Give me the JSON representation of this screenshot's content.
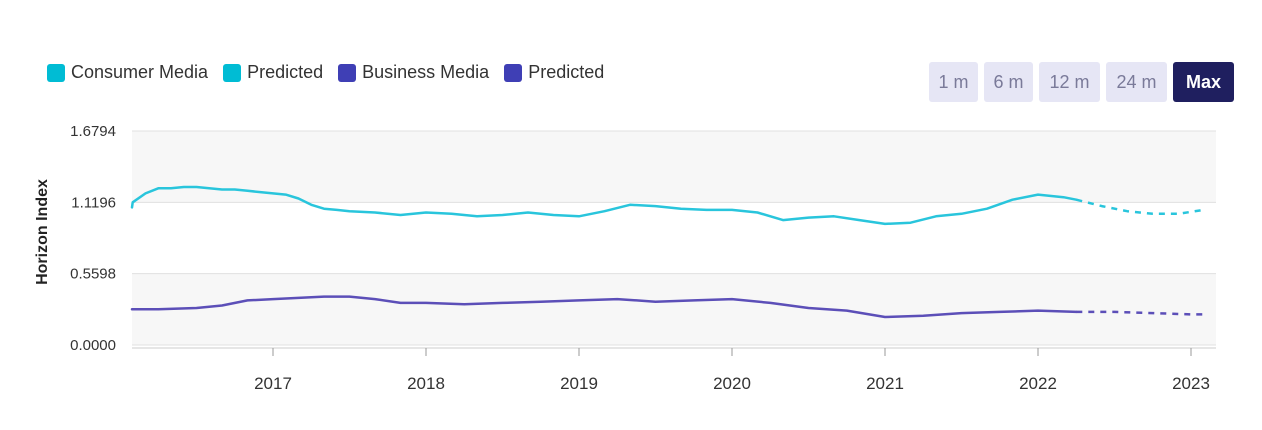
{
  "legend": [
    {
      "label": "Consumer Media",
      "color": "#00bcd4"
    },
    {
      "label": "Predicted",
      "color": "#00bcd4"
    },
    {
      "label": "Business Media",
      "color": "#3f3fb5"
    },
    {
      "label": "Predicted",
      "color": "#3f3fb5"
    }
  ],
  "range_buttons": [
    {
      "label": "1 m",
      "active": false
    },
    {
      "label": "6 m",
      "active": false
    },
    {
      "label": "12 m",
      "active": false
    },
    {
      "label": "24 m",
      "active": false
    },
    {
      "label": "Max",
      "active": true
    }
  ],
  "chart_data": {
    "type": "line",
    "title": "",
    "xlabel": "",
    "ylabel": "Horizon Index",
    "y_ticks": [
      "1.6794",
      "1.1196",
      "0.5598",
      "0.0000"
    ],
    "x_ticks": [
      "2017",
      "2018",
      "2019",
      "2020",
      "2021",
      "2022",
      "2023"
    ],
    "ylim": [
      0,
      1.6794
    ],
    "xlim": [
      "2016-01",
      "2023-02"
    ],
    "grid": "horizontal",
    "legend_position": "top-left",
    "series": [
      {
        "name": "Consumer Media",
        "color": "#29c5dc",
        "style": "solid",
        "points": [
          [
            "2016-01",
            1.08
          ],
          [
            "2016-02",
            1.12
          ],
          [
            "2016-03",
            1.19
          ],
          [
            "2016-04",
            1.23
          ],
          [
            "2016-05",
            1.23
          ],
          [
            "2016-06",
            1.24
          ],
          [
            "2016-07",
            1.24
          ],
          [
            "2016-08",
            1.23
          ],
          [
            "2016-09",
            1.22
          ],
          [
            "2016-10",
            1.22
          ],
          [
            "2016-11",
            1.21
          ],
          [
            "2016-12",
            1.2
          ],
          [
            "2017-01",
            1.19
          ],
          [
            "2017-02",
            1.18
          ],
          [
            "2017-03",
            1.15
          ],
          [
            "2017-04",
            1.1
          ],
          [
            "2017-05",
            1.07
          ],
          [
            "2017-06",
            1.06
          ],
          [
            "2017-07",
            1.05
          ],
          [
            "2017-09",
            1.04
          ],
          [
            "2017-11",
            1.02
          ],
          [
            "2018-01",
            1.04
          ],
          [
            "2018-03",
            1.03
          ],
          [
            "2018-05",
            1.01
          ],
          [
            "2018-07",
            1.02
          ],
          [
            "2018-09",
            1.04
          ],
          [
            "2018-11",
            1.02
          ],
          [
            "2019-01",
            1.01
          ],
          [
            "2019-03",
            1.05
          ],
          [
            "2019-05",
            1.1
          ],
          [
            "2019-07",
            1.09
          ],
          [
            "2019-09",
            1.07
          ],
          [
            "2019-11",
            1.06
          ],
          [
            "2020-01",
            1.06
          ],
          [
            "2020-03",
            1.04
          ],
          [
            "2020-05",
            0.98
          ],
          [
            "2020-07",
            1.0
          ],
          [
            "2020-09",
            1.01
          ],
          [
            "2020-11",
            0.98
          ],
          [
            "2021-01",
            0.95
          ],
          [
            "2021-03",
            0.96
          ],
          [
            "2021-05",
            1.01
          ],
          [
            "2021-07",
            1.03
          ],
          [
            "2021-09",
            1.07
          ],
          [
            "2021-11",
            1.14
          ],
          [
            "2022-01",
            1.18
          ],
          [
            "2022-03",
            1.16
          ],
          [
            "2022-04",
            1.14
          ]
        ]
      },
      {
        "name": "Predicted",
        "color": "#29c5dc",
        "style": "dashed",
        "points": [
          [
            "2022-04",
            1.14
          ],
          [
            "2022-06",
            1.09
          ],
          [
            "2022-08",
            1.05
          ],
          [
            "2022-10",
            1.03
          ],
          [
            "2022-12",
            1.03
          ],
          [
            "2023-02",
            1.06
          ]
        ]
      },
      {
        "name": "Business Media",
        "color": "#5c4fb8",
        "style": "solid",
        "points": [
          [
            "2016-01",
            0.28
          ],
          [
            "2016-04",
            0.28
          ],
          [
            "2016-07",
            0.29
          ],
          [
            "2016-09",
            0.31
          ],
          [
            "2016-11",
            0.35
          ],
          [
            "2017-01",
            0.36
          ],
          [
            "2017-03",
            0.37
          ],
          [
            "2017-05",
            0.38
          ],
          [
            "2017-07",
            0.38
          ],
          [
            "2017-09",
            0.36
          ],
          [
            "2017-11",
            0.33
          ],
          [
            "2018-01",
            0.33
          ],
          [
            "2018-04",
            0.32
          ],
          [
            "2018-07",
            0.33
          ],
          [
            "2018-10",
            0.34
          ],
          [
            "2019-01",
            0.35
          ],
          [
            "2019-04",
            0.36
          ],
          [
            "2019-07",
            0.34
          ],
          [
            "2019-10",
            0.35
          ],
          [
            "2020-01",
            0.36
          ],
          [
            "2020-04",
            0.33
          ],
          [
            "2020-07",
            0.29
          ],
          [
            "2020-10",
            0.27
          ],
          [
            "2021-01",
            0.22
          ],
          [
            "2021-04",
            0.23
          ],
          [
            "2021-07",
            0.25
          ],
          [
            "2021-10",
            0.26
          ],
          [
            "2022-01",
            0.27
          ],
          [
            "2022-04",
            0.26
          ]
        ]
      },
      {
        "name": "Predicted",
        "color": "#5c4fb8",
        "style": "dashed",
        "points": [
          [
            "2022-04",
            0.26
          ],
          [
            "2022-07",
            0.26
          ],
          [
            "2022-10",
            0.25
          ],
          [
            "2023-01",
            0.24
          ],
          [
            "2023-02",
            0.24
          ]
        ]
      }
    ]
  }
}
